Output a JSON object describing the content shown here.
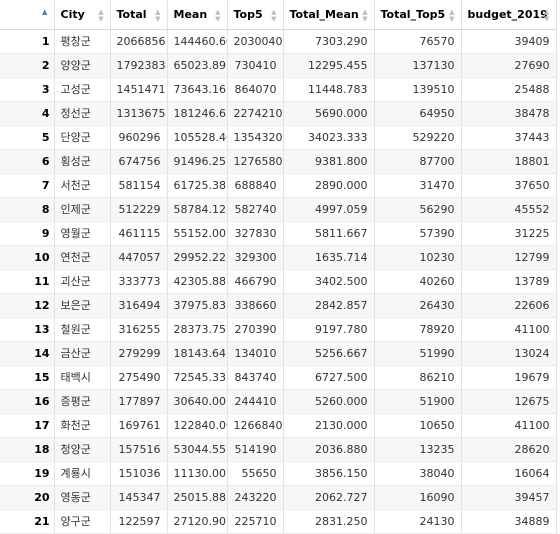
{
  "columns": [
    "City",
    "Total",
    "Mean",
    "Top5",
    "Total_Mean",
    "Total_Top5",
    "budget_2019"
  ],
  "rows": [
    {
      "index": "1",
      "City": "평창군",
      "Total": "2066856",
      "Mean": "144460.60",
      "Top5": "2030040",
      "Total_Mean": "7303.290",
      "Total_Top5": "76570",
      "budget_2019": "39409"
    },
    {
      "index": "2",
      "City": "양양군",
      "Total": "1792383",
      "Mean": "65023.89",
      "Top5": "730410",
      "Total_Mean": "12295.455",
      "Total_Top5": "137130",
      "budget_2019": "27690"
    },
    {
      "index": "3",
      "City": "고성군",
      "Total": "1451471",
      "Mean": "73643.16",
      "Top5": "864070",
      "Total_Mean": "11448.783",
      "Total_Top5": "139510",
      "budget_2019": "25488"
    },
    {
      "index": "4",
      "City": "정선군",
      "Total": "1313675",
      "Mean": "181246.67",
      "Top5": "2274210",
      "Total_Mean": "5690.000",
      "Total_Top5": "64950",
      "budget_2019": "38478"
    },
    {
      "index": "5",
      "City": "단양군",
      "Total": "960296",
      "Mean": "105528.40",
      "Top5": "1354320",
      "Total_Mean": "34023.333",
      "Total_Top5": "529220",
      "budget_2019": "37443"
    },
    {
      "index": "6",
      "City": "횡성군",
      "Total": "674756",
      "Mean": "91496.25",
      "Top5": "1276580",
      "Total_Mean": "9381.800",
      "Total_Top5": "87700",
      "budget_2019": "18801"
    },
    {
      "index": "7",
      "City": "서천군",
      "Total": "581154",
      "Mean": "61725.38",
      "Top5": "688840",
      "Total_Mean": "2890.000",
      "Total_Top5": "31470",
      "budget_2019": "37650"
    },
    {
      "index": "8",
      "City": "인제군",
      "Total": "512229",
      "Mean": "58784.12",
      "Top5": "582740",
      "Total_Mean": "4997.059",
      "Total_Top5": "56290",
      "budget_2019": "45552"
    },
    {
      "index": "9",
      "City": "영월군",
      "Total": "461115",
      "Mean": "55152.00",
      "Top5": "327830",
      "Total_Mean": "5811.667",
      "Total_Top5": "57390",
      "budget_2019": "31225"
    },
    {
      "index": "10",
      "City": "연천군",
      "Total": "447057",
      "Mean": "29952.22",
      "Top5": "329300",
      "Total_Mean": "1635.714",
      "Total_Top5": "10230",
      "budget_2019": "12799"
    },
    {
      "index": "11",
      "City": "괴산군",
      "Total": "333773",
      "Mean": "42305.88",
      "Top5": "466790",
      "Total_Mean": "3402.500",
      "Total_Top5": "40260",
      "budget_2019": "13789"
    },
    {
      "index": "12",
      "City": "보은군",
      "Total": "316494",
      "Mean": "37975.83",
      "Top5": "338660",
      "Total_Mean": "2842.857",
      "Total_Top5": "26430",
      "budget_2019": "22606"
    },
    {
      "index": "13",
      "City": "철원군",
      "Total": "316255",
      "Mean": "28373.75",
      "Top5": "270390",
      "Total_Mean": "9197.780",
      "Total_Top5": "78920",
      "budget_2019": "41100"
    },
    {
      "index": "14",
      "City": "금산군",
      "Total": "279299",
      "Mean": "18143.64",
      "Top5": "134010",
      "Total_Mean": "5256.667",
      "Total_Top5": "51990",
      "budget_2019": "13024"
    },
    {
      "index": "15",
      "City": "태백시",
      "Total": "275490",
      "Mean": "72545.33",
      "Top5": "843740",
      "Total_Mean": "6727.500",
      "Total_Top5": "86210",
      "budget_2019": "19679"
    },
    {
      "index": "16",
      "City": "증평군",
      "Total": "177897",
      "Mean": "30640.00",
      "Top5": "244410",
      "Total_Mean": "5260.000",
      "Total_Top5": "51900",
      "budget_2019": "12675"
    },
    {
      "index": "17",
      "City": "화천군",
      "Total": "169761",
      "Mean": "122840.00",
      "Top5": "1266840",
      "Total_Mean": "2130.000",
      "Total_Top5": "10650",
      "budget_2019": "41100"
    },
    {
      "index": "18",
      "City": "청양군",
      "Total": "157516",
      "Mean": "53044.55",
      "Top5": "514190",
      "Total_Mean": "2036.880",
      "Total_Top5": "13235",
      "budget_2019": "28620"
    },
    {
      "index": "19",
      "City": "계룡시",
      "Total": "151036",
      "Mean": "11130.00",
      "Top5": "55650",
      "Total_Mean": "3856.150",
      "Total_Top5": "38040",
      "budget_2019": "16064"
    },
    {
      "index": "20",
      "City": "영동군",
      "Total": "145347",
      "Mean": "25015.88",
      "Top5": "243220",
      "Total_Mean": "2062.727",
      "Total_Top5": "16090",
      "budget_2019": "39457"
    },
    {
      "index": "21",
      "City": "양구군",
      "Total": "122597",
      "Mean": "27120.90",
      "Top5": "225710",
      "Total_Mean": "2831.250",
      "Total_Top5": "24130",
      "budget_2019": "34889"
    }
  ]
}
